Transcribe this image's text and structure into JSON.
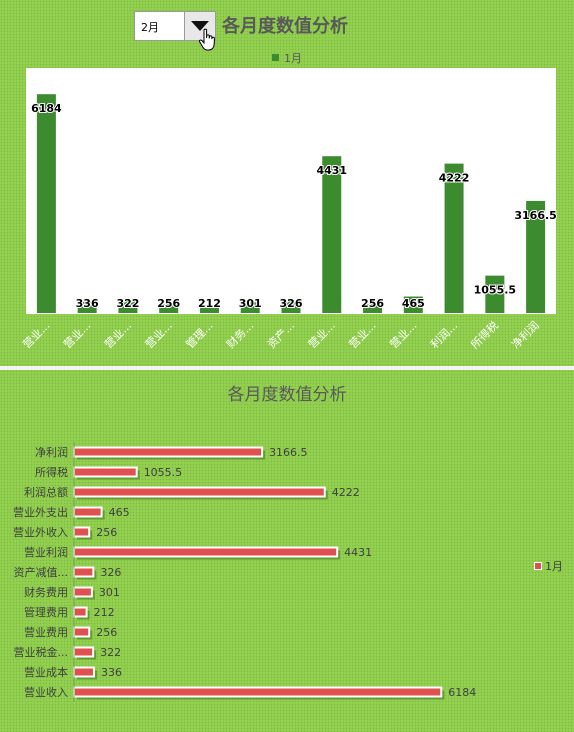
{
  "selector": {
    "value": "2月"
  },
  "chart_data": [
    {
      "type": "bar",
      "title": "各月度数值分析",
      "legend": {
        "series": "1月",
        "position": "top"
      },
      "categories": [
        "营业收入",
        "营业成本",
        "营业税金...",
        "营业费用",
        "管理费用",
        "财务费用",
        "资产减值...",
        "营业利润",
        "营业外收入",
        "营业外支出",
        "利润总额",
        "所得税",
        "净利润"
      ],
      "category_tick_labels": [
        "营业...",
        "营业...",
        "营业...",
        "营业...",
        "管理...",
        "财务...",
        "资产...",
        "营业...",
        "营业...",
        "营业...",
        "利润...",
        "所得税",
        "净利润"
      ],
      "value_labels": [
        "6184",
        "336",
        "322",
        "256",
        "212",
        "301",
        "326",
        "4431",
        "256",
        "465",
        "4222",
        "1055.5",
        "3166.5"
      ],
      "series": [
        {
          "values": [
            6184,
            336,
            322,
            256,
            212,
            301,
            326,
            4431,
            256,
            465,
            4222,
            1055.5,
            3166.5
          ],
          "color": "#3d8b2f"
        }
      ],
      "ylim": [
        0,
        6500
      ],
      "grid": false
    },
    {
      "type": "bar",
      "orientation": "horizontal",
      "title": "各月度数值分析",
      "legend": {
        "series": "1月",
        "position": "right"
      },
      "categories": [
        "营业收入",
        "营业成本",
        "营业税金...",
        "营业费用",
        "管理费用",
        "财务费用",
        "资产减值...",
        "营业利润",
        "营业外收入",
        "营业外支出",
        "利润总额",
        "所得税",
        "净利润"
      ],
      "value_labels": [
        "6184",
        "336",
        "322",
        "256",
        "212",
        "301",
        "326",
        "4431",
        "256",
        "465",
        "4222",
        "1055.5",
        "3166.5"
      ],
      "series": [
        {
          "values": [
            6184,
            336,
            322,
            256,
            212,
            301,
            326,
            4431,
            256,
            465,
            4222,
            1055.5,
            3166.5
          ],
          "color": "#e05050"
        }
      ],
      "xlim": [
        0,
        6600
      ],
      "grid": false
    }
  ]
}
